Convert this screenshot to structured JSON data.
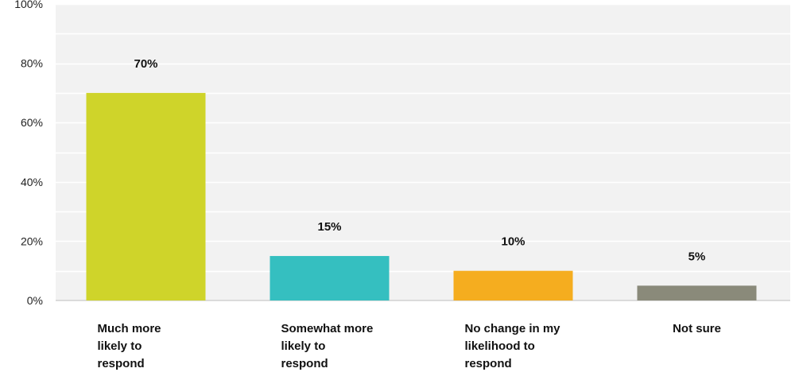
{
  "chart_data": {
    "type": "bar",
    "categories": [
      [
        "Much more",
        "likely to",
        "respond"
      ],
      [
        "Somewhat more",
        "likely to",
        "respond"
      ],
      [
        "No change in my",
        "likelihood to",
        "respond"
      ],
      [
        "Not sure"
      ]
    ],
    "values": [
      70,
      15,
      10,
      5
    ],
    "data_labels": [
      "70%",
      "15%",
      "10%",
      "5%"
    ],
    "colors": [
      "#cfd42a",
      "#35bfc0",
      "#f5ad1f",
      "#8a8a7a"
    ],
    "y_ticks": [
      0,
      20,
      40,
      60,
      80,
      100
    ],
    "y_tick_labels": [
      "0%",
      "20%",
      "40%",
      "60%",
      "80%",
      "100%"
    ],
    "ylim": [
      0,
      100
    ],
    "grid": true,
    "title": "",
    "xlabel": "",
    "ylabel": ""
  }
}
